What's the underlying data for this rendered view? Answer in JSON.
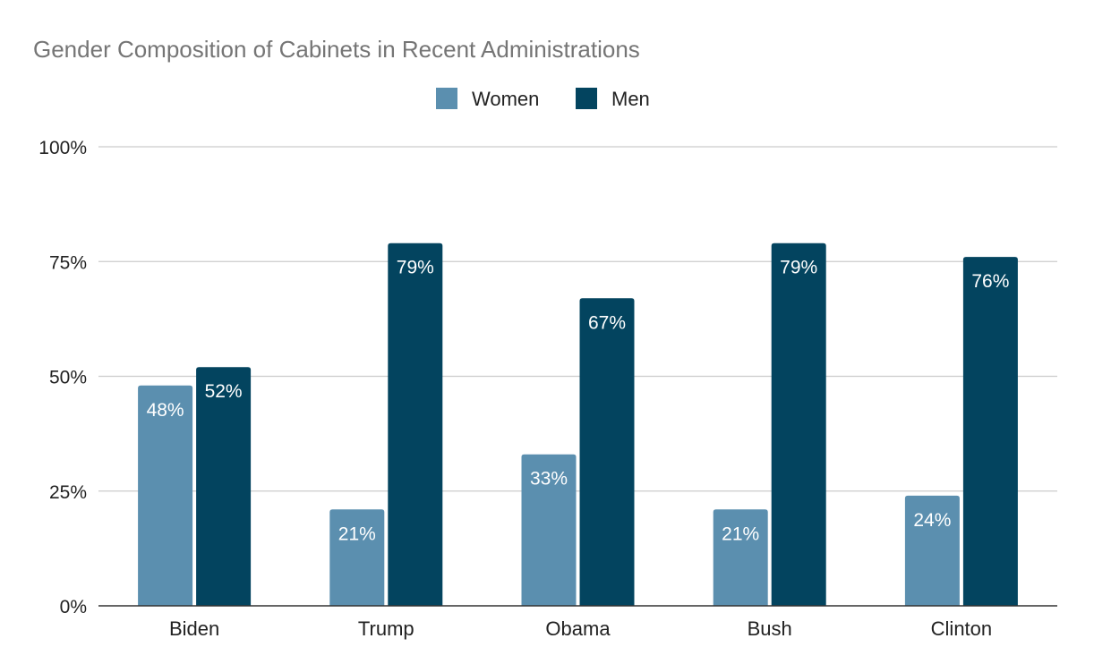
{
  "chart_data": {
    "type": "bar",
    "title": "Gender Composition of Cabinets in Recent Administrations",
    "xlabel": "",
    "ylabel": "",
    "categories": [
      "Biden",
      "Trump",
      "Obama",
      "Bush",
      "Clinton"
    ],
    "series": [
      {
        "name": "Women",
        "color": "#5b8faf",
        "values": [
          48,
          21,
          33,
          21,
          24
        ],
        "labels": [
          "48%",
          "21%",
          "33%",
          "21%",
          "24%"
        ]
      },
      {
        "name": "Men",
        "color": "#03445f",
        "values": [
          52,
          79,
          67,
          79,
          76
        ],
        "labels": [
          "52%",
          "79%",
          "67%",
          "79%",
          "76%"
        ]
      }
    ],
    "ylim": [
      0,
      100
    ],
    "yticks": [
      0,
      25,
      50,
      75,
      100
    ],
    "ytick_labels": [
      "0%",
      "25%",
      "50%",
      "75%",
      "100%"
    ],
    "grid": true,
    "legend_position": "top-center"
  }
}
